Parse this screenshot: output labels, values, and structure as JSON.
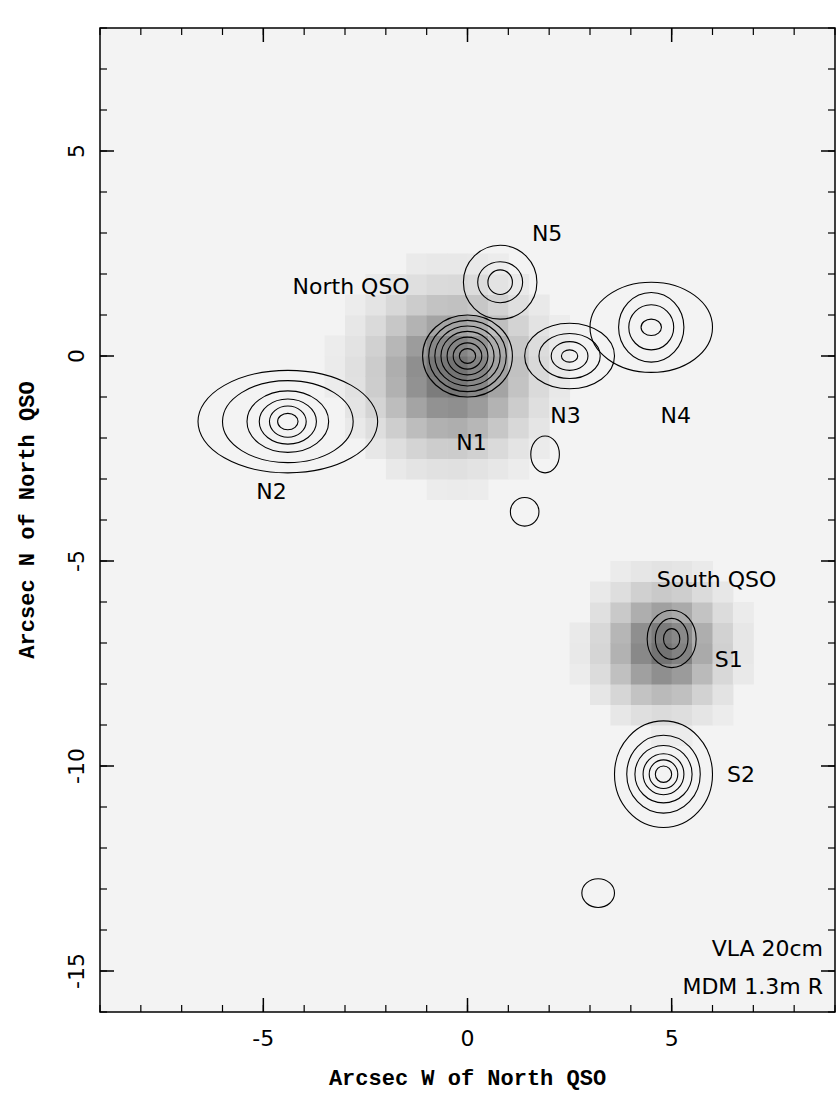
{
  "chart_data": {
    "type": "contour",
    "xlabel": "Arcsec W of North QSO",
    "ylabel": "Arcsec N of North QSO",
    "xlim": [
      -9,
      9
    ],
    "ylim": [
      -16,
      8
    ],
    "xticks": [
      -5,
      0,
      5
    ],
    "yticks": [
      -15,
      -10,
      -5,
      0,
      5
    ],
    "color": "#000000",
    "optical": [
      {
        "label": "North QSO",
        "x": -0.4,
        "y": -0.4,
        "width": 1.2,
        "label_x": -2.85,
        "label_y": 1.7
      },
      {
        "label": "South QSO",
        "x": 4.8,
        "y": -7.1,
        "width": 0.9,
        "label_x": 6.1,
        "label_y": -5.45
      }
    ],
    "components": [
      {
        "label": "N1",
        "x": 0,
        "y": 0,
        "rx": [
          1.1,
          0.95,
          0.8,
          0.65,
          0.5,
          0.35,
          0.2
        ],
        "ry": [
          1.0,
          0.87,
          0.73,
          0.6,
          0.46,
          0.32,
          0.18
        ],
        "label_x": 0.1,
        "label_y": -2.1
      },
      {
        "label": "N2",
        "x": -4.4,
        "y": -1.6,
        "rx": [
          2.2,
          1.6,
          1.0,
          0.7,
          0.45,
          0.25
        ],
        "ry": [
          1.25,
          1.0,
          0.75,
          0.55,
          0.38,
          0.2
        ],
        "label_x": -4.8,
        "label_y": -3.3
      },
      {
        "label": "N3",
        "x": 2.5,
        "y": 0,
        "rx": [
          1.1,
          0.75,
          0.45,
          0.2
        ],
        "ry": [
          0.8,
          0.55,
          0.35,
          0.15
        ],
        "label_x": 2.4,
        "label_y": -1.45
      },
      {
        "label": "N4",
        "x": 4.5,
        "y": 0.7,
        "rx": [
          1.5,
          0.8,
          0.55,
          0.25
        ],
        "ry": [
          1.1,
          0.85,
          0.55,
          0.2
        ],
        "label_x": 5.1,
        "label_y": -1.45
      },
      {
        "label": "N5",
        "x": 0.8,
        "y": 1.8,
        "rx": [
          0.9,
          0.55,
          0.3
        ],
        "ry": [
          0.9,
          0.5,
          0.3
        ],
        "label_x": 1.95,
        "label_y": 3.0
      },
      {
        "label": "S1",
        "x": 5.0,
        "y": -6.9,
        "rx": [
          0.6,
          0.4,
          0.2
        ],
        "ry": [
          0.7,
          0.5,
          0.25
        ],
        "label_x": 6.4,
        "label_y": -7.4
      },
      {
        "label": "S2",
        "x": 4.8,
        "y": -10.2,
        "rx": [
          1.2,
          0.9,
          0.7,
          0.5,
          0.35,
          0.2
        ],
        "ry": [
          1.3,
          0.95,
          0.7,
          0.5,
          0.35,
          0.2
        ],
        "label_x": 6.7,
        "label_y": -10.2
      }
    ],
    "extra_contours": [
      {
        "x": 1.9,
        "y": -2.4,
        "rx": 0.35,
        "ry": 0.45
      },
      {
        "x": 1.4,
        "y": -3.8,
        "rx": 0.35,
        "ry": 0.35
      },
      {
        "x": 3.2,
        "y": -13.1,
        "rx": 0.4,
        "ry": 0.35
      }
    ],
    "notes": [
      "VLA 20cm",
      "MDM 1.3m R"
    ]
  }
}
